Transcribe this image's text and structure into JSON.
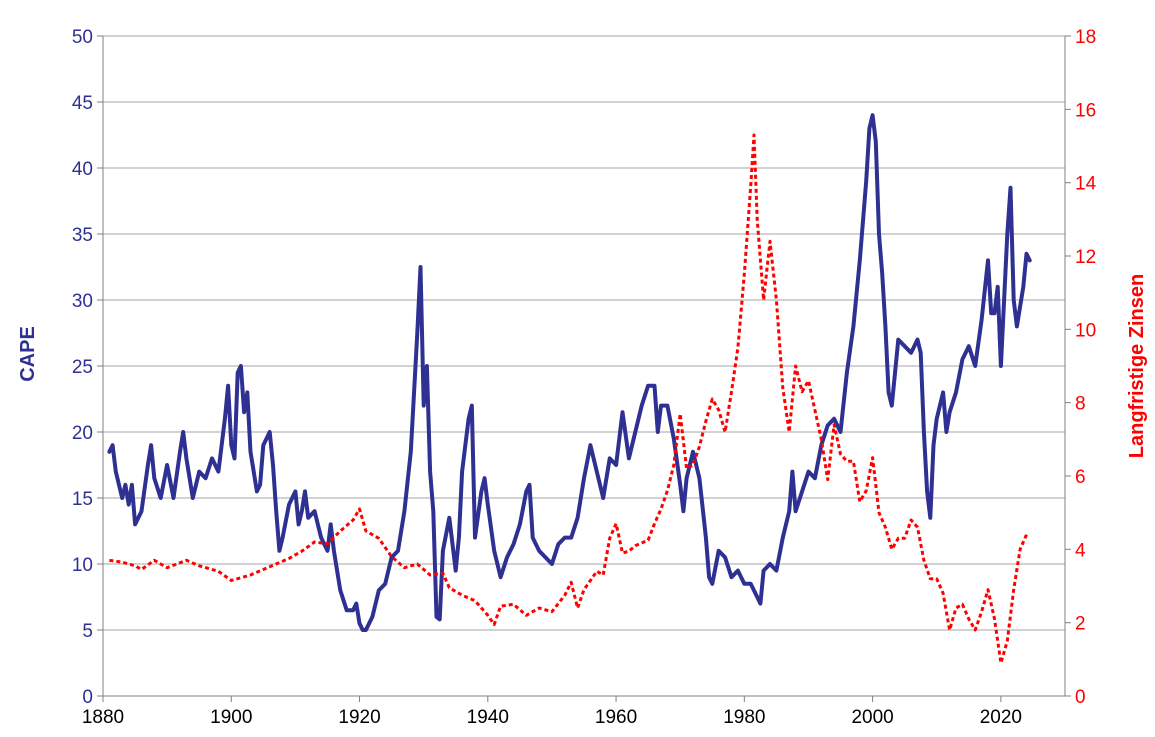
{
  "chart_data": {
    "type": "line",
    "xlim": [
      1880,
      2030
    ],
    "x_ticks": [
      "1880",
      "1900",
      "1920",
      "1940",
      "1960",
      "1980",
      "2000",
      "2020"
    ],
    "y_left": {
      "label": "CAPE",
      "lim": [
        0,
        50
      ],
      "ticks": [
        "0",
        "5",
        "10",
        "15",
        "20",
        "25",
        "30",
        "35",
        "40",
        "45",
        "50"
      ],
      "color": "#2e3192"
    },
    "y_right": {
      "label": "Langfristige Zinsen",
      "lim": [
        0,
        18
      ],
      "ticks": [
        "0",
        "2",
        "4",
        "6",
        "8",
        "10",
        "12",
        "14",
        "16",
        "18"
      ],
      "color": "#ff0000"
    },
    "grid": "horizontal",
    "legend": "none",
    "series": [
      {
        "axis": "left",
        "style": "solid",
        "color": "#2e3192",
        "points": [
          [
            1881,
            18.5
          ],
          [
            1881.5,
            19
          ],
          [
            1882,
            17
          ],
          [
            1883,
            15
          ],
          [
            1883.5,
            16
          ],
          [
            1884,
            14.5
          ],
          [
            1884.5,
            16
          ],
          [
            1885,
            13
          ],
          [
            1886,
            14
          ],
          [
            1887,
            17.5
          ],
          [
            1887.5,
            19
          ],
          [
            1888,
            16.5
          ],
          [
            1889,
            15
          ],
          [
            1890,
            17.5
          ],
          [
            1891,
            15
          ],
          [
            1892,
            18.5
          ],
          [
            1892.5,
            20
          ],
          [
            1893,
            18
          ],
          [
            1894,
            15
          ],
          [
            1895,
            17
          ],
          [
            1896,
            16.5
          ],
          [
            1897,
            18
          ],
          [
            1898,
            17
          ],
          [
            1899,
            21
          ],
          [
            1899.5,
            23.5
          ],
          [
            1900,
            19
          ],
          [
            1900.5,
            18
          ],
          [
            1901,
            24.5
          ],
          [
            1901.5,
            25
          ],
          [
            1902,
            21.5
          ],
          [
            1902.5,
            23
          ],
          [
            1903,
            18.5
          ],
          [
            1904,
            15.5
          ],
          [
            1904.5,
            16
          ],
          [
            1905,
            19
          ],
          [
            1906,
            20
          ],
          [
            1906.5,
            17.5
          ],
          [
            1907,
            14
          ],
          [
            1907.5,
            11
          ],
          [
            1908,
            12
          ],
          [
            1909,
            14.5
          ],
          [
            1910,
            15.5
          ],
          [
            1910.5,
            13
          ],
          [
            1911,
            14
          ],
          [
            1911.5,
            15.5
          ],
          [
            1912,
            13.5
          ],
          [
            1913,
            14
          ],
          [
            1914,
            12
          ],
          [
            1915,
            11
          ],
          [
            1915.5,
            13
          ],
          [
            1916,
            11
          ],
          [
            1917,
            8
          ],
          [
            1918,
            6.5
          ],
          [
            1919,
            6.5
          ],
          [
            1919.5,
            7
          ],
          [
            1920,
            5.5
          ],
          [
            1920.5,
            5
          ],
          [
            1921,
            5
          ],
          [
            1922,
            6
          ],
          [
            1923,
            8
          ],
          [
            1924,
            8.5
          ],
          [
            1925,
            10.5
          ],
          [
            1926,
            11
          ],
          [
            1927,
            14
          ],
          [
            1928,
            18.5
          ],
          [
            1929,
            27.5
          ],
          [
            1929.5,
            32.5
          ],
          [
            1930,
            22
          ],
          [
            1930.5,
            25
          ],
          [
            1931,
            17
          ],
          [
            1931.5,
            14
          ],
          [
            1932,
            6
          ],
          [
            1932.5,
            5.8
          ],
          [
            1933,
            11
          ],
          [
            1934,
            13.5
          ],
          [
            1935,
            9.5
          ],
          [
            1935.5,
            12
          ],
          [
            1936,
            17
          ],
          [
            1937,
            21
          ],
          [
            1937.5,
            22
          ],
          [
            1938,
            12
          ],
          [
            1939,
            15.5
          ],
          [
            1939.5,
            16.5
          ],
          [
            1940,
            14.5
          ],
          [
            1941,
            11
          ],
          [
            1942,
            9
          ],
          [
            1943,
            10.5
          ],
          [
            1944,
            11.5
          ],
          [
            1945,
            13
          ],
          [
            1946,
            15.5
          ],
          [
            1946.5,
            16
          ],
          [
            1947,
            12
          ],
          [
            1948,
            11
          ],
          [
            1949,
            10.5
          ],
          [
            1950,
            10
          ],
          [
            1951,
            11.5
          ],
          [
            1952,
            12
          ],
          [
            1953,
            12
          ],
          [
            1954,
            13.5
          ],
          [
            1955,
            16.5
          ],
          [
            1956,
            19
          ],
          [
            1957,
            17
          ],
          [
            1958,
            15
          ],
          [
            1959,
            18
          ],
          [
            1960,
            17.5
          ],
          [
            1961,
            21.5
          ],
          [
            1962,
            18
          ],
          [
            1963,
            20
          ],
          [
            1964,
            22
          ],
          [
            1965,
            23.5
          ],
          [
            1966,
            23.5
          ],
          [
            1966.5,
            20
          ],
          [
            1967,
            22
          ],
          [
            1968,
            22
          ],
          [
            1969,
            19.5
          ],
          [
            1970,
            16
          ],
          [
            1970.5,
            14
          ],
          [
            1971,
            16.5
          ],
          [
            1972,
            18.5
          ],
          [
            1973,
            16.5
          ],
          [
            1974,
            12
          ],
          [
            1974.5,
            9
          ],
          [
            1975,
            8.5
          ],
          [
            1976,
            11
          ],
          [
            1977,
            10.5
          ],
          [
            1978,
            9
          ],
          [
            1979,
            9.5
          ],
          [
            1980,
            8.5
          ],
          [
            1981,
            8.5
          ],
          [
            1982,
            7.5
          ],
          [
            1982.5,
            7
          ],
          [
            1983,
            9.5
          ],
          [
            1984,
            10
          ],
          [
            1985,
            9.5
          ],
          [
            1986,
            12
          ],
          [
            1987,
            14
          ],
          [
            1987.5,
            17
          ],
          [
            1988,
            14
          ],
          [
            1989,
            15.5
          ],
          [
            1990,
            17
          ],
          [
            1991,
            16.5
          ],
          [
            1992,
            19
          ],
          [
            1993,
            20.5
          ],
          [
            1994,
            21
          ],
          [
            1995,
            20
          ],
          [
            1996,
            24.5
          ],
          [
            1997,
            28
          ],
          [
            1998,
            33
          ],
          [
            1999,
            39
          ],
          [
            1999.5,
            43
          ],
          [
            2000,
            44
          ],
          [
            2000.5,
            42
          ],
          [
            2001,
            35
          ],
          [
            2001.5,
            32
          ],
          [
            2002,
            28
          ],
          [
            2002.5,
            23
          ],
          [
            2003,
            22
          ],
          [
            2004,
            27
          ],
          [
            2005,
            26.5
          ],
          [
            2006,
            26
          ],
          [
            2007,
            27
          ],
          [
            2007.5,
            26
          ],
          [
            2008,
            20
          ],
          [
            2008.5,
            15.5
          ],
          [
            2009,
            13.5
          ],
          [
            2009.5,
            19
          ],
          [
            2010,
            21
          ],
          [
            2011,
            23
          ],
          [
            2011.5,
            20
          ],
          [
            2012,
            21.5
          ],
          [
            2013,
            23
          ],
          [
            2014,
            25.5
          ],
          [
            2015,
            26.5
          ],
          [
            2016,
            25
          ],
          [
            2017,
            28.5
          ],
          [
            2018,
            33
          ],
          [
            2018.5,
            29
          ],
          [
            2019,
            29
          ],
          [
            2019.5,
            31
          ],
          [
            2020,
            25
          ],
          [
            2020.5,
            30
          ],
          [
            2021,
            35
          ],
          [
            2021.5,
            38.5
          ],
          [
            2022,
            30
          ],
          [
            2022.5,
            28
          ],
          [
            2023,
            29.5
          ],
          [
            2023.5,
            31
          ],
          [
            2024,
            33.5
          ],
          [
            2024.5,
            33
          ]
        ]
      },
      {
        "axis": "right",
        "style": "dashed",
        "color": "#ff0000",
        "points": [
          [
            1881,
            3.7
          ],
          [
            1883,
            3.65
          ],
          [
            1885,
            3.55
          ],
          [
            1886,
            3.45
          ],
          [
            1888,
            3.7
          ],
          [
            1890,
            3.5
          ],
          [
            1893,
            3.7
          ],
          [
            1895,
            3.55
          ],
          [
            1898,
            3.4
          ],
          [
            1900,
            3.15
          ],
          [
            1903,
            3.3
          ],
          [
            1905,
            3.45
          ],
          [
            1907,
            3.6
          ],
          [
            1909,
            3.75
          ],
          [
            1911,
            3.95
          ],
          [
            1913,
            4.2
          ],
          [
            1915,
            4.15
          ],
          [
            1917,
            4.5
          ],
          [
            1919,
            4.8
          ],
          [
            1920,
            5.1
          ],
          [
            1921,
            4.5
          ],
          [
            1923,
            4.3
          ],
          [
            1925,
            3.8
          ],
          [
            1927,
            3.5
          ],
          [
            1929,
            3.6
          ],
          [
            1931,
            3.3
          ],
          [
            1933,
            3.35
          ],
          [
            1934,
            2.95
          ],
          [
            1936,
            2.75
          ],
          [
            1938,
            2.6
          ],
          [
            1940,
            2.2
          ],
          [
            1941,
            1.95
          ],
          [
            1942,
            2.45
          ],
          [
            1944,
            2.5
          ],
          [
            1946,
            2.2
          ],
          [
            1948,
            2.4
          ],
          [
            1950,
            2.3
          ],
          [
            1952,
            2.75
          ],
          [
            1953,
            3.1
          ],
          [
            1954,
            2.4
          ],
          [
            1955,
            2.9
          ],
          [
            1957,
            3.4
          ],
          [
            1958,
            3.3
          ],
          [
            1959,
            4.3
          ],
          [
            1960,
            4.7
          ],
          [
            1961,
            3.9
          ],
          [
            1962,
            3.95
          ],
          [
            1963,
            4.1
          ],
          [
            1965,
            4.25
          ],
          [
            1966,
            4.7
          ],
          [
            1967,
            5.1
          ],
          [
            1968,
            5.6
          ],
          [
            1969,
            6.3
          ],
          [
            1970,
            7.7
          ],
          [
            1971,
            6.2
          ],
          [
            1972,
            6.3
          ],
          [
            1973,
            6.8
          ],
          [
            1974,
            7.5
          ],
          [
            1975,
            8.1
          ],
          [
            1976,
            7.8
          ],
          [
            1977,
            7.2
          ],
          [
            1978,
            8.3
          ],
          [
            1979,
            9.5
          ],
          [
            1980,
            11.5
          ],
          [
            1981,
            13.9
          ],
          [
            1981.5,
            15.3
          ],
          [
            1982,
            13
          ],
          [
            1983,
            10.8
          ],
          [
            1984,
            12.4
          ],
          [
            1985,
            10.8
          ],
          [
            1986,
            8.4
          ],
          [
            1987,
            7.2
          ],
          [
            1988,
            9
          ],
          [
            1989,
            8.3
          ],
          [
            1990,
            8.6
          ],
          [
            1991,
            7.8
          ],
          [
            1992,
            7
          ],
          [
            1993,
            5.9
          ],
          [
            1994,
            7.4
          ],
          [
            1995,
            6.6
          ],
          [
            1996,
            6.4
          ],
          [
            1997,
            6.4
          ],
          [
            1998,
            5.3
          ],
          [
            1999,
            5.6
          ],
          [
            2000,
            6.5
          ],
          [
            2001,
            5
          ],
          [
            2002,
            4.6
          ],
          [
            2003,
            4
          ],
          [
            2004,
            4.3
          ],
          [
            2005,
            4.3
          ],
          [
            2006,
            4.8
          ],
          [
            2007,
            4.6
          ],
          [
            2008,
            3.7
          ],
          [
            2009,
            3.2
          ],
          [
            2010,
            3.2
          ],
          [
            2011,
            2.8
          ],
          [
            2012,
            1.8
          ],
          [
            2013,
            2.4
          ],
          [
            2014,
            2.5
          ],
          [
            2015,
            2.1
          ],
          [
            2016,
            1.8
          ],
          [
            2017,
            2.3
          ],
          [
            2018,
            2.9
          ],
          [
            2019,
            2.1
          ],
          [
            2020,
            0.9
          ],
          [
            2021,
            1.5
          ],
          [
            2022,
            2.9
          ],
          [
            2023,
            4
          ],
          [
            2024,
            4.4
          ]
        ]
      }
    ]
  }
}
